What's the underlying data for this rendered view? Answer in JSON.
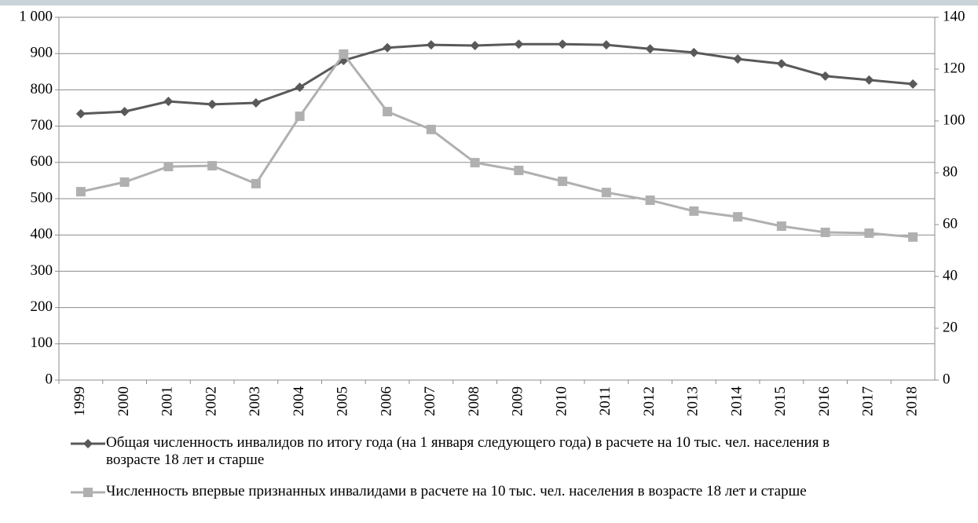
{
  "chart_data": {
    "type": "line",
    "categories": [
      "1999",
      "2000",
      "2001",
      "2002",
      "2003",
      "2004",
      "2005",
      "2006",
      "2007",
      "2008",
      "2009",
      "2010",
      "2011",
      "2012",
      "2013",
      "2014",
      "2015",
      "2016",
      "2017",
      "2018"
    ],
    "series": [
      {
        "name": "Общая численность инвалидов по итогу года (на 1 января следующего года) в расчете на 10 тыс. чел. населения в возрасте 18 лет и старше",
        "color": "#595959",
        "marker": "diamond",
        "values": [
          734,
          740,
          768,
          760,
          764,
          807,
          881,
          916,
          924,
          922,
          926,
          926,
          924,
          913,
          903,
          885,
          872,
          838,
          827,
          816
        ]
      },
      {
        "name": "Численность впервые признанных инвалидами в расчете на 10 тыс. чел. населения в возрасте 18 лет и старше",
        "color": "#b0b0b0",
        "marker": "square",
        "axis": "y2",
        "values": [
          72.7,
          76.4,
          82.4,
          82.7,
          75.8,
          101.8,
          125.8,
          103.6,
          96.7,
          83.9,
          80.9,
          76.7,
          72.4,
          69.4,
          65.2,
          63.0,
          59.4,
          57.0,
          56.7,
          55.2
        ]
      }
    ],
    "ylim": [
      0,
      1000
    ],
    "yticks": [
      0,
      100,
      200,
      300,
      400,
      500,
      600,
      700,
      800,
      900,
      {
        "value": 1000,
        "label": "1 000"
      }
    ],
    "y2lim": [
      0,
      140
    ],
    "y2ticks": [
      0,
      20,
      40,
      60,
      80,
      100,
      120,
      140
    ],
    "grid": true
  }
}
